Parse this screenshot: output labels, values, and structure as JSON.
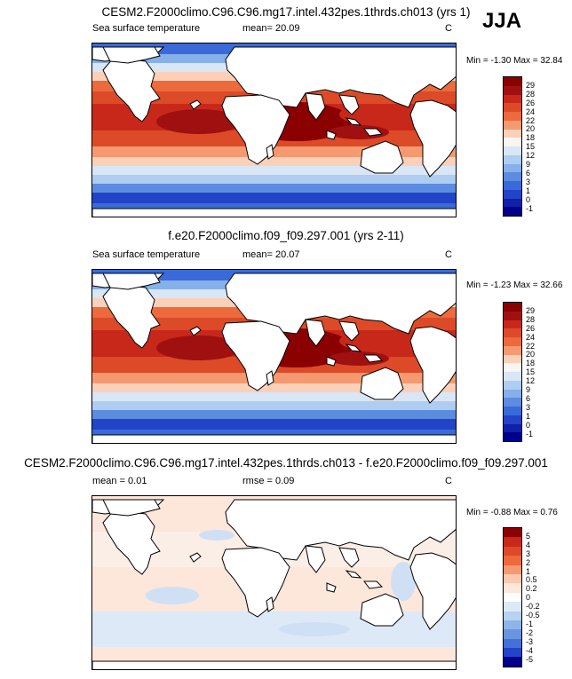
{
  "season": "JJA",
  "panels": [
    {
      "title": "CESM2.F2000climo.C96.C96.mg17.intel.432pes.1thrds.ch013 (yrs 1)",
      "variable": "Sea surface temperature",
      "stats": "mean=  20.09",
      "units": "C",
      "minmax": "Min =  -1.30 Max =  32.84",
      "colorbar_labels": [
        "29",
        "28",
        "26",
        "24",
        "22",
        "20",
        "18",
        "15",
        "12",
        "9",
        "6",
        "3",
        "1",
        "0",
        "-1"
      ]
    },
    {
      "title": "f.e20.F2000climo.f09_f09.297.001 (yrs 2-11)",
      "variable": "Sea surface temperature",
      "stats": "mean=  20.07",
      "units": "C",
      "minmax": "Min =  -1.23 Max =  32.66",
      "colorbar_labels": [
        "29",
        "28",
        "26",
        "24",
        "22",
        "20",
        "18",
        "15",
        "12",
        "9",
        "6",
        "3",
        "1",
        "0",
        "-1"
      ]
    },
    {
      "title": "CESM2.F2000climo.C96.C96.mg17.intel.432pes.1thrds.ch013 - f.e20.F2000climo.f09_f09.297.001",
      "stats": "mean =   0.01",
      "rmse": "rmse =   0.09",
      "units": "C",
      "minmax": "Min =  -0.88 Max =   0.76",
      "colorbar_labels": [
        "5",
        "4",
        "3",
        "2",
        "1",
        "0.5",
        "0.2",
        "0",
        "-0.2",
        "-0.5",
        "-1",
        "-2",
        "-3",
        "-4",
        "-5"
      ]
    }
  ],
  "colors": {
    "sst": [
      "#8b0000",
      "#a01010",
      "#c8281a",
      "#dc4a28",
      "#ec6a3c",
      "#f59a70",
      "#fbd0b8",
      "#f9f5f0",
      "#d8e6f6",
      "#aecdf0",
      "#86b0ea",
      "#5c8ce0",
      "#3a6ad8",
      "#2244c8",
      "#1020a8",
      "#00008b"
    ],
    "diff": [
      "#8b0000",
      "#c8281a",
      "#dc4a28",
      "#ec6a3c",
      "#f59a70",
      "#fbc8b0",
      "#fde6da",
      "#ffffff",
      "#dde9f7",
      "#b8d2f0",
      "#8eb4e8",
      "#6a94e0",
      "#4470d8",
      "#2244c8",
      "#00008b"
    ]
  }
}
